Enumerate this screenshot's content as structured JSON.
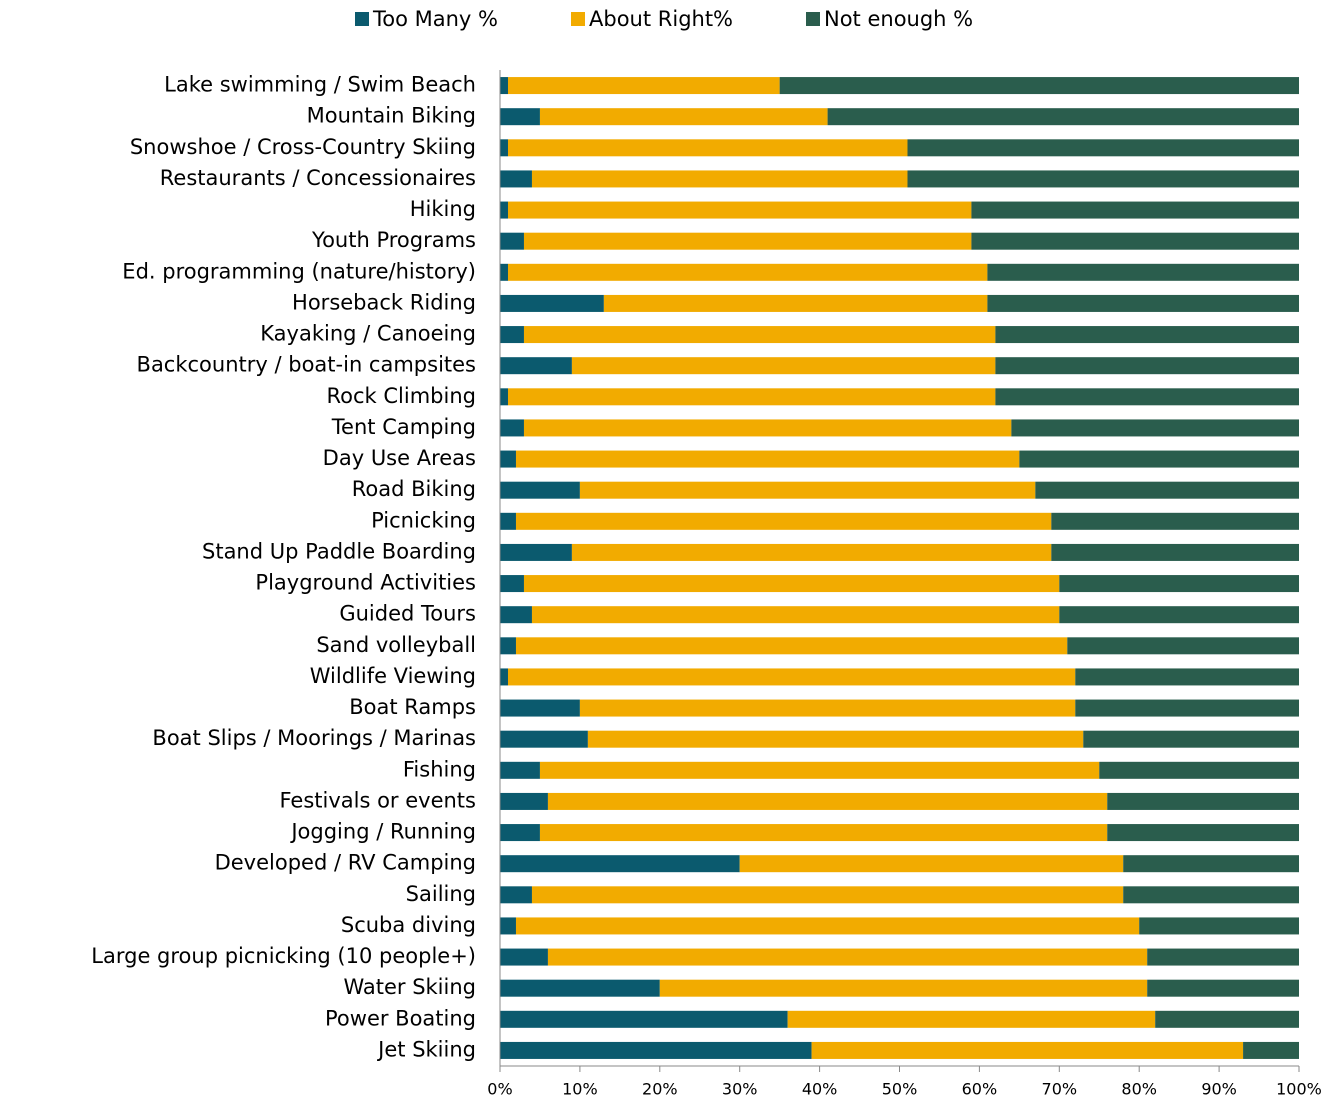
{
  "chart_data": {
    "type": "stacked_barh",
    "categories": [
      "Lake swimming / Swim Beach",
      "Mountain Biking",
      "Snowshoe / Cross-Country Skiing",
      "Restaurants / Concessionaires",
      "Hiking",
      "Youth Programs",
      "Ed. programming (nature/history)",
      "Horseback Riding",
      "Kayaking / Canoeing",
      "Backcountry / boat-in campsites",
      "Rock Climbing",
      "Tent Camping",
      "Day Use Areas",
      "Road Biking",
      "Picnicking",
      "Stand Up Paddle Boarding",
      "Playground Activities",
      "Guided Tours",
      "Sand volleyball",
      "Wildlife Viewing",
      "Boat Ramps",
      "Boat Slips / Moorings / Marinas",
      "Fishing",
      "Festivals or events",
      "Jogging / Running",
      "Developed / RV Camping",
      "Sailing",
      "Scuba diving",
      "Large group picnicking (10 people+)",
      "Water Skiing",
      "Power Boating",
      "Jet Skiing"
    ],
    "series": [
      {
        "name": "Too Many %",
        "color": "#0b5a6e",
        "values": [
          1,
          5,
          1,
          4,
          1,
          3,
          1,
          13,
          3,
          9,
          1,
          3,
          2,
          10,
          2,
          9,
          3,
          4,
          2,
          1,
          10,
          11,
          5,
          6,
          5,
          30,
          4,
          2,
          6,
          20,
          36,
          39
        ]
      },
      {
        "name": "About Right%",
        "color": "#f2ab00",
        "values": [
          34,
          36,
          50,
          47,
          58,
          56,
          60,
          48,
          59,
          53,
          61,
          61,
          63,
          57,
          67,
          60,
          67,
          66,
          69,
          71,
          62,
          62,
          70,
          70,
          71,
          48,
          74,
          78,
          75,
          61,
          46,
          54
        ]
      },
      {
        "name": "Not enough %",
        "color": "#2a5d4d",
        "values": [
          65,
          59,
          49,
          49,
          41,
          41,
          39,
          39,
          38,
          38,
          38,
          36,
          35,
          33,
          31,
          31,
          30,
          30,
          29,
          28,
          28,
          27,
          25,
          24,
          24,
          22,
          22,
          20,
          19,
          19,
          18,
          7
        ]
      }
    ],
    "xlim": [
      0,
      100
    ],
    "xticks": [
      {
        "value": 0,
        "label": "0%"
      },
      {
        "value": 10,
        "label": "10%"
      },
      {
        "value": 20,
        "label": "20%"
      },
      {
        "value": 30,
        "label": "30%"
      },
      {
        "value": 40,
        "label": "40%"
      },
      {
        "value": 50,
        "label": "50%"
      },
      {
        "value": 60,
        "label": "60%"
      },
      {
        "value": 70,
        "label": "70%"
      },
      {
        "value": 80,
        "label": "80%"
      },
      {
        "value": 90,
        "label": "90%"
      },
      {
        "value": 100,
        "label": "100%"
      }
    ],
    "legend": "top"
  }
}
